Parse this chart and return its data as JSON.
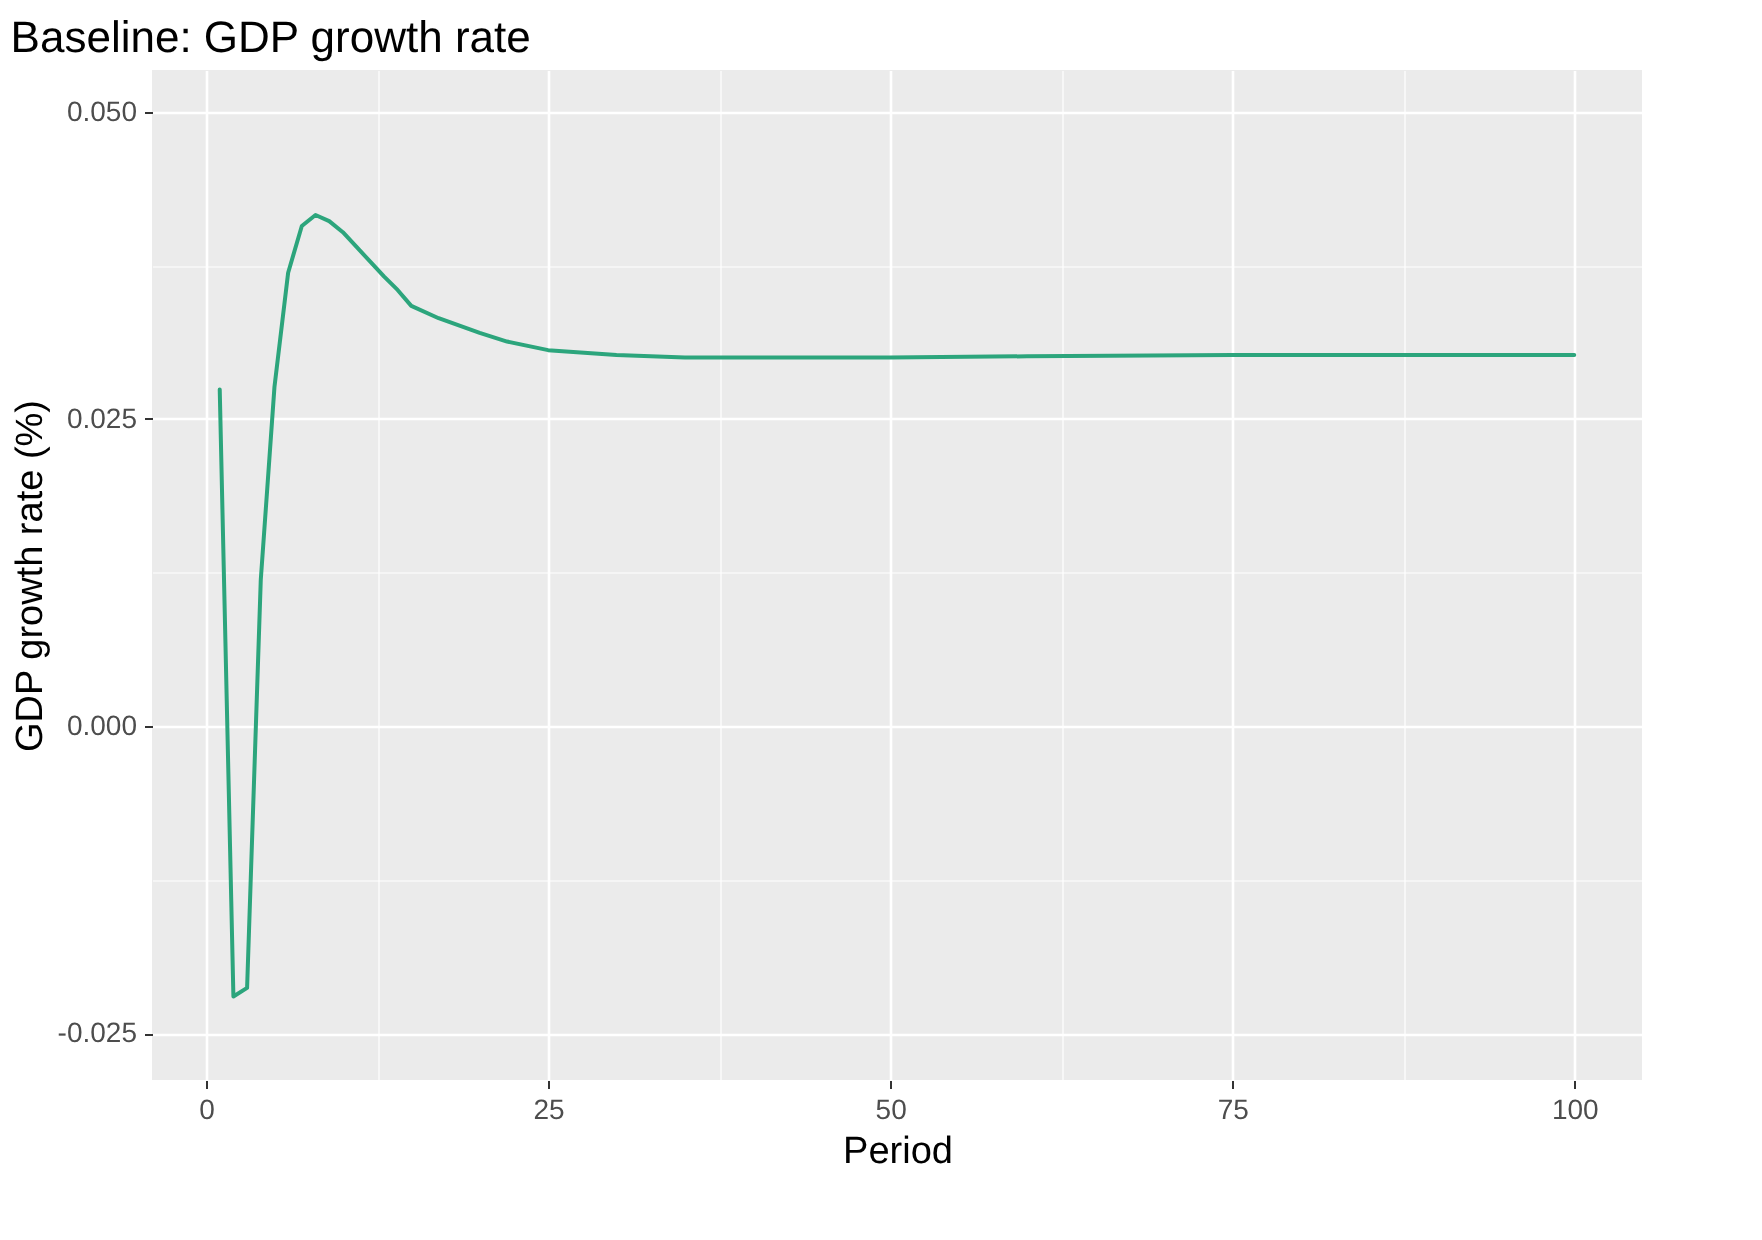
{
  "chart_data": {
    "type": "line",
    "title": "Baseline: GDP growth rate",
    "xlabel": "Period",
    "ylabel": "GDP growth rate (%)",
    "x": [
      1,
      2,
      3,
      4,
      5,
      6,
      7,
      8,
      9,
      10,
      11,
      12,
      13,
      14,
      15,
      17,
      20,
      22,
      25,
      30,
      35,
      40,
      50,
      60,
      75,
      90,
      100
    ],
    "series": [
      {
        "color": "#2ca57c",
        "values": [
          0.0274,
          -0.022,
          -0.0213,
          0.0119,
          0.0276,
          0.0369,
          0.0407,
          0.0416,
          0.0411,
          0.0402,
          0.039,
          0.0378,
          0.0366,
          0.0355,
          0.0342,
          0.0332,
          0.032,
          0.0313,
          0.0306,
          0.0302,
          0.03,
          0.03,
          0.03,
          0.0301,
          0.0302,
          0.0302,
          0.0302
        ]
      }
    ],
    "xlim": [
      -3.95,
      104.95
    ],
    "ylim": [
      -0.0288,
      0.0534
    ],
    "xticks": [
      0,
      {
        "value": 12.5,
        "label": null
      },
      25,
      {
        "value": 37.5,
        "label": null
      },
      50,
      {
        "value": 62.5,
        "label": null
      },
      75,
      {
        "value": 87.5,
        "label": null
      },
      100
    ],
    "yticks": [
      {
        "value": -0.025,
        "label": "-0.025"
      },
      {
        "value": -0.0125,
        "label": null
      },
      {
        "value": 0,
        "label": "0.000"
      },
      {
        "value": 0.0125,
        "label": null
      },
      {
        "value": 0.025,
        "label": "0.025"
      },
      {
        "value": 0.0375,
        "label": null
      },
      {
        "value": 0.05,
        "label": "0.050"
      }
    ],
    "grid": true,
    "legend": false,
    "line_style": "solid"
  }
}
